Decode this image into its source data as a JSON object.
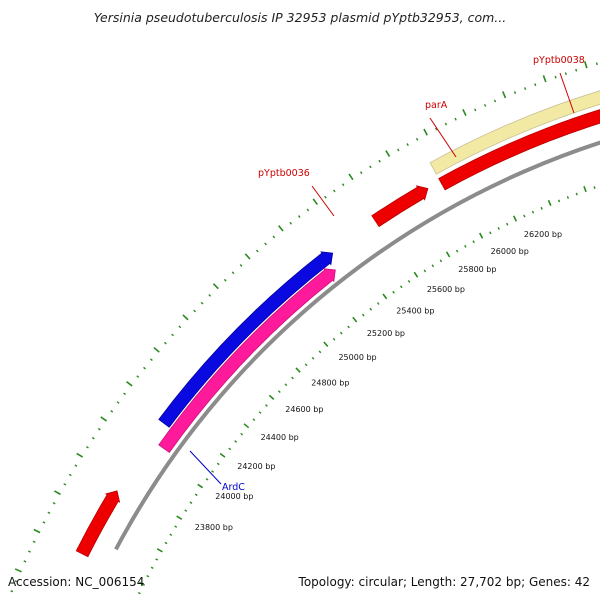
{
  "title": "Yersinia pseudotuberculosis IP 32953 plasmid pYptb32953, com...",
  "footer": {
    "accession": "Accession: NC_006154",
    "summary": "Topology: circular; Length: 27,702 bp; Genes: 42"
  },
  "colors": {
    "backbone": "#8c8c8c",
    "tick": "#2a8a1e",
    "red_feature": "#ee0000",
    "yellow_feature": "#f2eaa4",
    "blue_feature": "#0a0ae0",
    "pink_feature": "#ff1a9c",
    "red_label": "#cc0000",
    "blue_label": "#0000cc"
  },
  "ticks": [
    {
      "bp": 23800,
      "label": "23800 bp"
    },
    {
      "bp": 24000,
      "label": "24000 bp"
    },
    {
      "bp": 24200,
      "label": "24200 bp"
    },
    {
      "bp": 24400,
      "label": "24400 bp"
    },
    {
      "bp": 24600,
      "label": "24600 bp"
    },
    {
      "bp": 24800,
      "label": "24800 bp"
    },
    {
      "bp": 25000,
      "label": "25000 bp"
    },
    {
      "bp": 25200,
      "label": "25200 bp"
    },
    {
      "bp": 25400,
      "label": "25400 bp"
    },
    {
      "bp": 25600,
      "label": "25600 bp"
    },
    {
      "bp": 25800,
      "label": "25800 bp"
    },
    {
      "bp": 26000,
      "label": "26000 bp"
    },
    {
      "bp": 26200,
      "label": "26200 bp"
    }
  ],
  "features": [
    {
      "id": "pyptb0036",
      "label": "pYptb0036",
      "color": "red",
      "start": 25580,
      "end": 25880
    },
    {
      "id": "para",
      "label": "parA",
      "color": "yellow",
      "start": 25950,
      "end": 26940
    },
    {
      "id": "red-under-para",
      "label": "",
      "color": "red",
      "start": 25950,
      "end": 26940
    },
    {
      "id": "pyptb0038",
      "label": "pYptb0038",
      "color": "red",
      "start": 27000,
      "end": 27500
    },
    {
      "id": "blue-feature",
      "label": "",
      "color": "blue",
      "start": 24150,
      "end": 25320
    },
    {
      "id": "ardc",
      "label": "ArdC",
      "color": "pink",
      "start": 24050,
      "end": 25280
    },
    {
      "id": "left-red",
      "label": "",
      "color": "red",
      "start": 23400,
      "end": 23750
    }
  ]
}
